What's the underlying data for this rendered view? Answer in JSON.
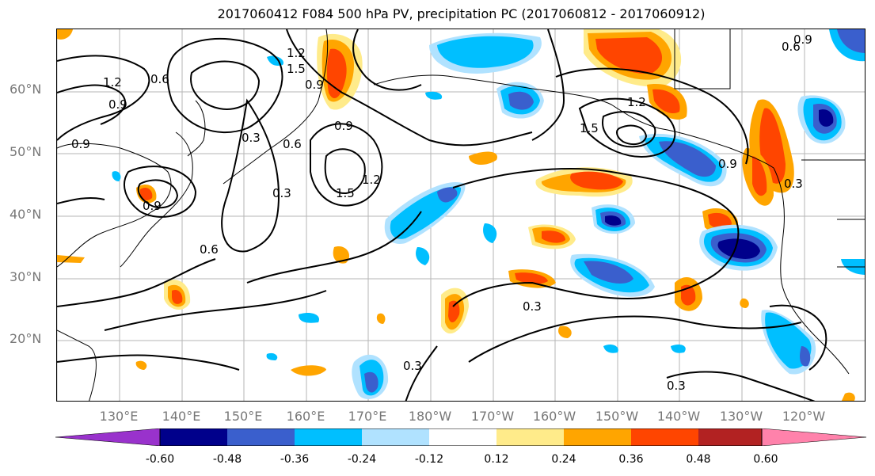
{
  "title": "2017060412 F084 500 hPa PV, precipitation PC (2017060812 - 2017060912)",
  "map": {
    "lat_labels": [
      "60°N",
      "50°N",
      "40°N",
      "30°N",
      "20°N"
    ],
    "lon_labels": [
      "130°E",
      "140°E",
      "150°E",
      "160°E",
      "170°E",
      "180°W",
      "170°W",
      "160°W",
      "150°W",
      "140°W",
      "130°W",
      "120°W"
    ],
    "contour_labels": [
      "0.3",
      "0.6",
      "0.9",
      "1.2",
      "1.5"
    ],
    "contour_color": "#000000"
  },
  "colorbar": {
    "tick_labels": [
      "-0.60",
      "-0.48",
      "-0.36",
      "-0.24",
      "-0.12",
      "0.12",
      "0.24",
      "0.36",
      "0.48",
      "0.60"
    ],
    "colors": [
      "#9932cc",
      "#00008b",
      "#3a5fcd",
      "#00bfff",
      "#b0e2ff",
      "#ffffff",
      "#ffeb8a",
      "#ffa500",
      "#ff4500",
      "#b22222",
      "#ff82ab"
    ]
  }
}
